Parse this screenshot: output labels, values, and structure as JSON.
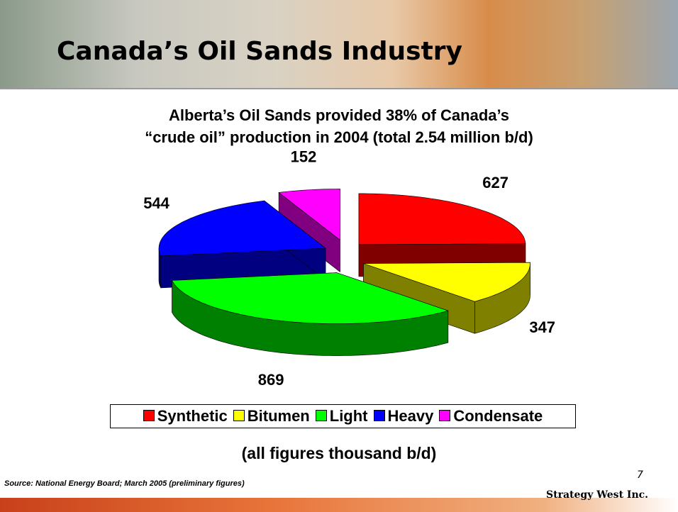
{
  "header": {
    "title": "Canada’s Oil Sands Industry"
  },
  "chart_data": {
    "type": "pie",
    "title": [
      "Alberta’s Oil Sands provided 38% of Canada’s",
      "“crude oil” production in 2004 (total 2.54 million b/d)"
    ],
    "categories": [
      "Synthetic",
      "Bitumen",
      "Light",
      "Heavy",
      "Condensate"
    ],
    "values": [
      627,
      347,
      869,
      544,
      152
    ],
    "colors": [
      "#ff0000",
      "#ffff00",
      "#00ff00",
      "#0000ff",
      "#ff00ff"
    ],
    "legend": "bottom",
    "note": "(all figures thousand b/d)"
  },
  "footer": {
    "source": "Source: National Energy Board; March 2005 (preliminary figures)",
    "page": "7",
    "logo": "Strategy West Inc."
  }
}
